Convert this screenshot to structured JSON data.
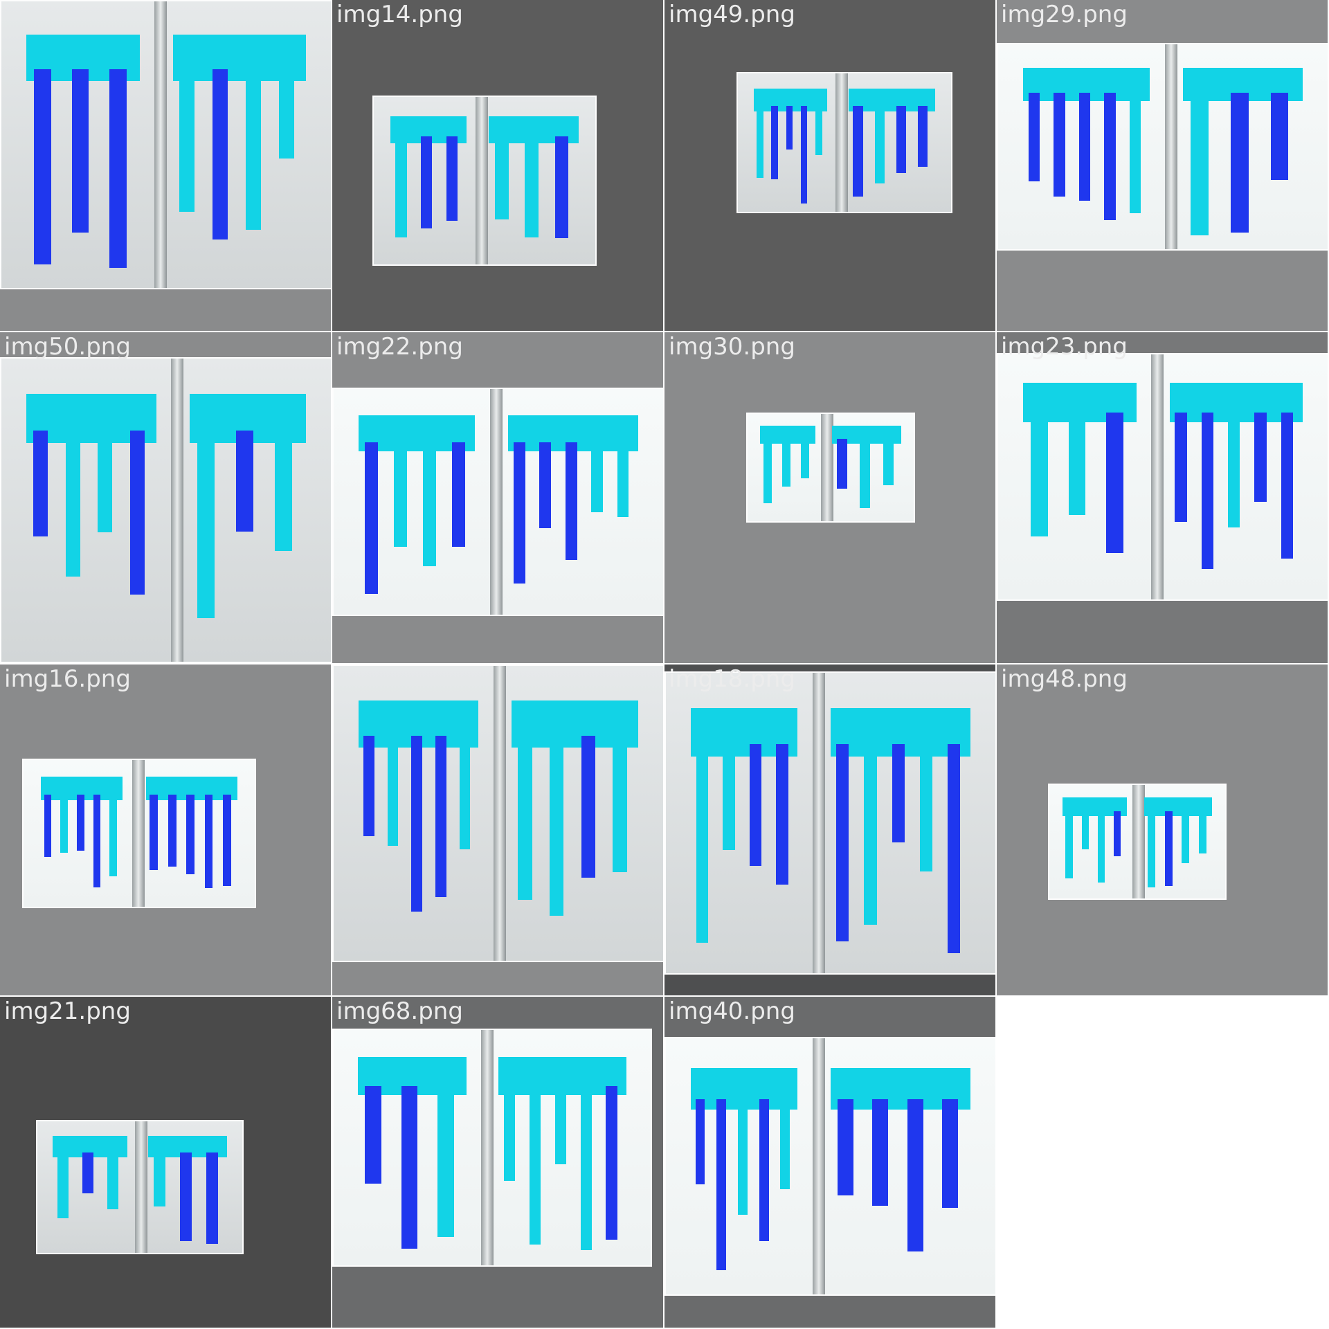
{
  "colors": {
    "class_0": "#1f37ee",
    "class_1": "#12d3e6"
  },
  "tiles": [
    {
      "name": "",
      "bg": "#8a8b8c",
      "tone": "gray",
      "book": [
        0,
        0,
        480,
        418
      ],
      "spine": 0.48,
      "labels": 26
    },
    {
      "name": "img14.png",
      "bg": "#5c5c5c",
      "tone": "gray",
      "book": [
        58,
        138,
        382,
        384
      ],
      "spine": 0.48,
      "labels": 8
    },
    {
      "name": "img49.png",
      "bg": "#5c5c5c",
      "tone": "gray",
      "book": [
        104,
        104,
        416,
        308
      ],
      "spine": 0.48,
      "labels": 3
    },
    {
      "name": "img29.png",
      "bg": "#8a8b8c",
      "tone": "white",
      "book": [
        0,
        62,
        480,
        362
      ],
      "spine": 0.52,
      "labels": 14
    },
    {
      "name": "img50.png",
      "bg": "#8a8b8c",
      "tone": "gray",
      "book": [
        0,
        36,
        480,
        478
      ],
      "spine": 0.53,
      "labels": 20
    },
    {
      "name": "img22.png",
      "bg": "#8a8b8c",
      "tone": "white",
      "book": [
        0,
        80,
        480,
        410
      ],
      "spine": 0.49,
      "labels": 12
    },
    {
      "name": "img30.png",
      "bg": "#8a8b8c",
      "tone": "white",
      "book": [
        118,
        116,
        362,
        275
      ],
      "spine": 0.47,
      "labels": 8
    },
    {
      "name": "img23.png",
      "bg": "#777879",
      "tone": "white",
      "book": [
        0,
        30,
        480,
        388
      ],
      "spine": 0.48,
      "labels": 16
    },
    {
      "name": "img16.png",
      "bg": "#8a8b8c",
      "tone": "white",
      "book": [
        32,
        136,
        370,
        352
      ],
      "spine": 0.49,
      "labels": 9
    },
    {
      "name": "",
      "bg": "#8a8b8c",
      "tone": "gray",
      "book": [
        0,
        0,
        480,
        430
      ],
      "spine": 0.5,
      "labels": 18
    },
    {
      "name": "img18.png",
      "bg": "#4e4f50",
      "tone": "gray",
      "book": [
        0,
        10,
        480,
        448
      ],
      "spine": 0.46,
      "labels": 26
    },
    {
      "name": "img48.png",
      "bg": "#8a8b8c",
      "tone": "white",
      "book": [
        74,
        172,
        332,
        340
      ],
      "spine": 0.5,
      "labels": 4
    },
    {
      "name": "img21.png",
      "bg": "#4a4a4a",
      "tone": "gray",
      "book": [
        52,
        178,
        352,
        372
      ],
      "spine": 0.5,
      "labels": 9
    },
    {
      "name": "img68.png",
      "bg": "#6a6b6c",
      "tone": "white",
      "book": [
        0,
        46,
        462,
        390
      ],
      "spine": 0.48,
      "labels": 15
    },
    {
      "name": "img40.png",
      "bg": "#6a6b6c",
      "tone": "white",
      "book": [
        0,
        58,
        480,
        432
      ],
      "spine": 0.46,
      "labels": 20
    },
    {
      "name": "",
      "bg": "#ffffff",
      "tone": "none",
      "book": null,
      "spine": 0,
      "labels": 0
    }
  ]
}
